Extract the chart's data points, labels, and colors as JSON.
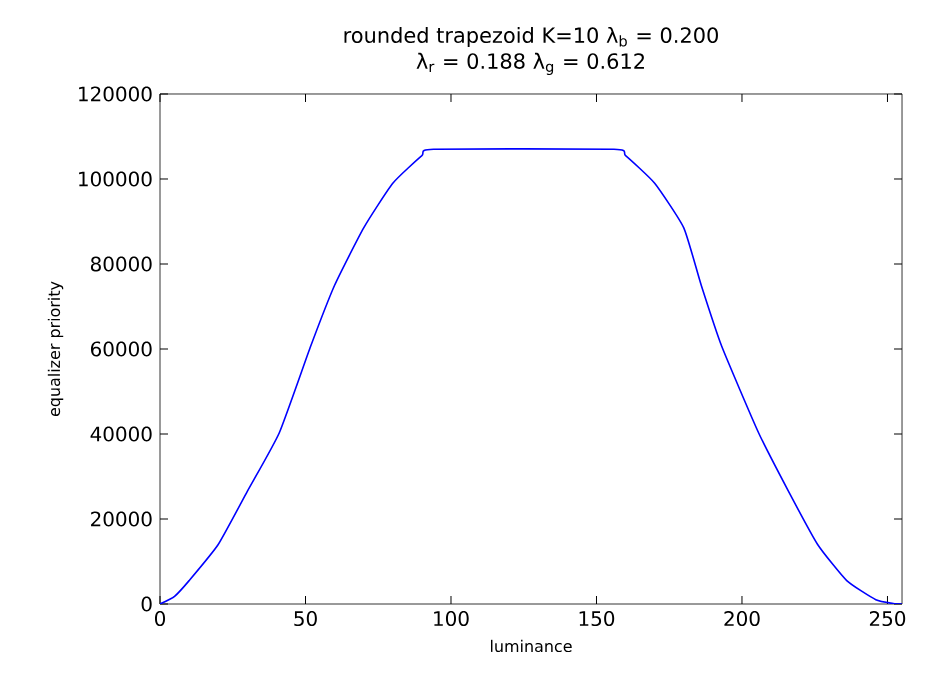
{
  "chart_data": {
    "type": "line",
    "title": "rounded trapezoid K=10 λ$_{b}$ = 0.200",
    "subtitle": "λ$_{r}$ = 0.188 λ$_{g}$ = 0.612",
    "xlabel": "luminance",
    "ylabel": "equalizer priority",
    "xlim": [
      0,
      255
    ],
    "ylim": [
      0,
      120000
    ],
    "xticks": [
      0,
      50,
      100,
      150,
      200,
      250
    ],
    "yticks": [
      0,
      20000,
      40000,
      60000,
      80000,
      100000,
      120000
    ],
    "grid": false,
    "series": [
      {
        "color": "#0000ff",
        "x": [
          0,
          5,
          10,
          20,
          30,
          41,
          51.8,
          60,
          70,
          80,
          90,
          94,
          156,
          160,
          170,
          180,
          186,
          193,
          205.7,
          216,
          226,
          236,
          246,
          252,
          255
        ],
        "values": [
          0,
          1800,
          5500,
          14000,
          26500,
          40300,
          60700,
          75000,
          88500,
          99000,
          105500,
          107000,
          107000,
          105500,
          99000,
          88500,
          75000,
          60700,
          40300,
          26500,
          14000,
          5500,
          1000,
          100,
          0
        ]
      }
    ]
  }
}
